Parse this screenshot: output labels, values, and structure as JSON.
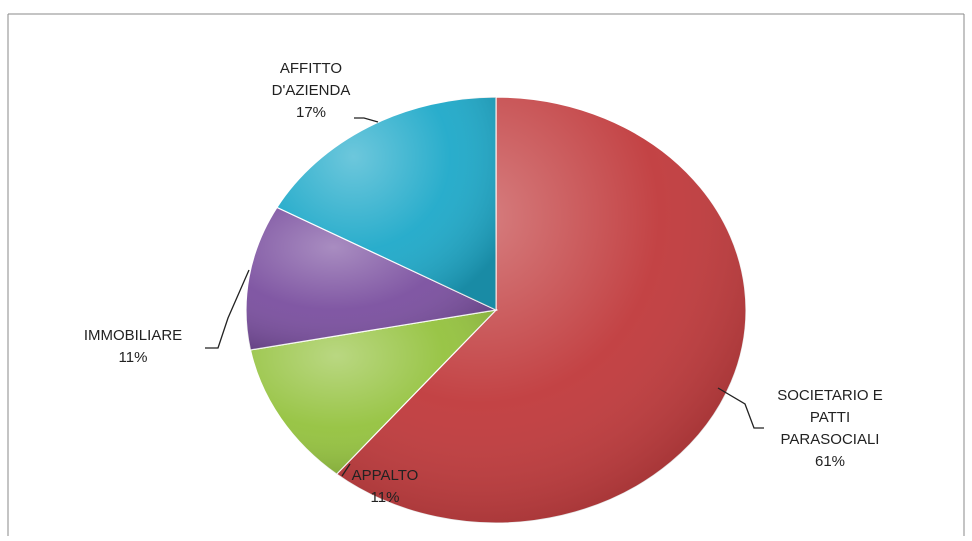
{
  "chart_data": {
    "type": "pie",
    "title": "",
    "slices": [
      {
        "label": [
          "SOCIETARIO E",
          "PATTI",
          "PARASOCIALI"
        ],
        "percent_label": "61%",
        "value": 61,
        "color": "#c0393b"
      },
      {
        "label": [
          "APPALTO"
        ],
        "percent_label": "11%",
        "value": 11,
        "color": "#94c23e"
      },
      {
        "label": [
          "IMMOBILIARE"
        ],
        "percent_label": "11%",
        "value": 11,
        "color": "#7a4f9f"
      },
      {
        "label": [
          "AFFITTO",
          "D'AZIENDA"
        ],
        "percent_label": "17%",
        "value": 17,
        "color": "#1ea9c9"
      }
    ],
    "start_angle_deg": 0,
    "direction": "clockwise",
    "legend": "none",
    "data_labels": "outside with leader lines"
  }
}
